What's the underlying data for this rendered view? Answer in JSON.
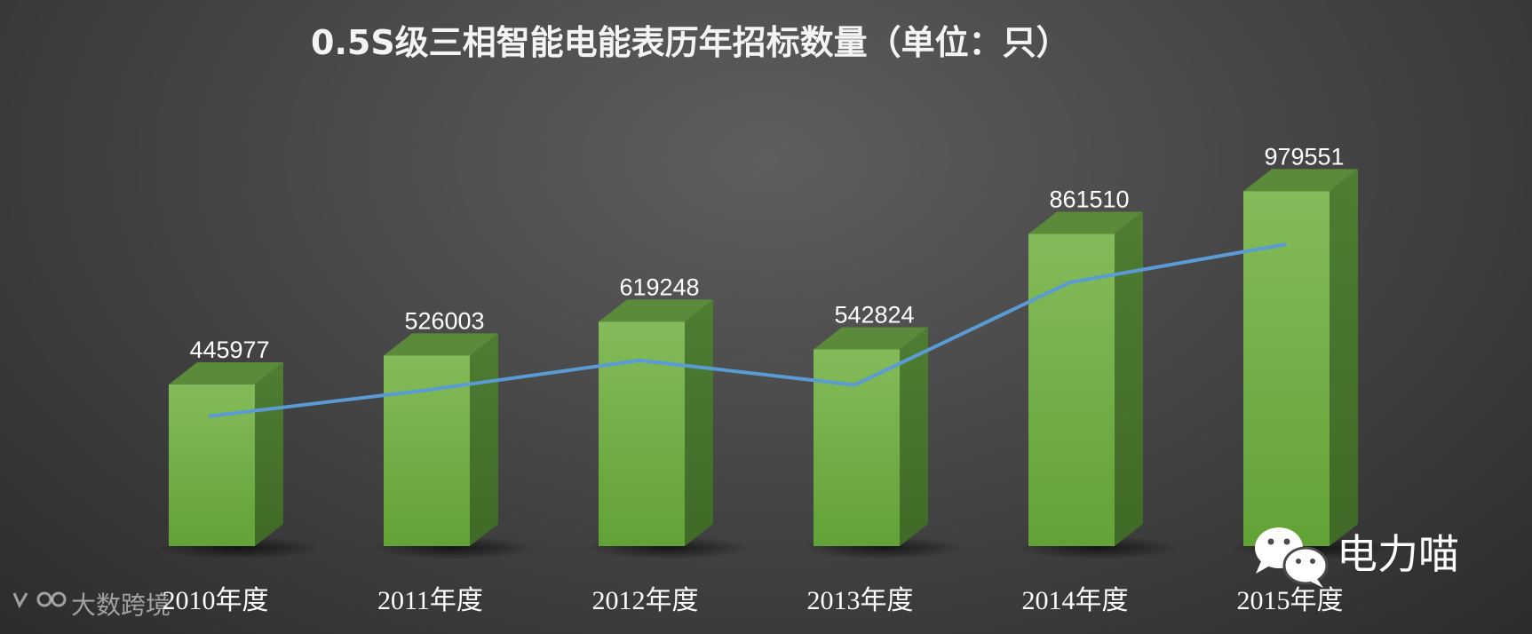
{
  "chart_data": {
    "type": "bar",
    "title": "0.5S级三相智能电能表历年招标数量（单位：只）",
    "categories": [
      "2010年度",
      "2011年度",
      "2012年度",
      "2013年度",
      "2014年度",
      "2015年度"
    ],
    "series": [
      {
        "values": [
          445977,
          526003,
          619248,
          542824,
          861510,
          979551
        ]
      }
    ],
    "trend_line": {
      "values": [
        445977,
        526003,
        619248,
        542824,
        861510,
        979551
      ]
    },
    "ylim": [
      0,
      1000000
    ],
    "grid": false,
    "legend": "none",
    "bar_color": "#6fb043",
    "line_color": "#5b9bd5"
  },
  "watermarks": {
    "wechat": {
      "text": "电力喵",
      "icon": "wechat-icon"
    },
    "brand": {
      "text": "大数跨境",
      "icon": "brand-logo-icon"
    }
  }
}
